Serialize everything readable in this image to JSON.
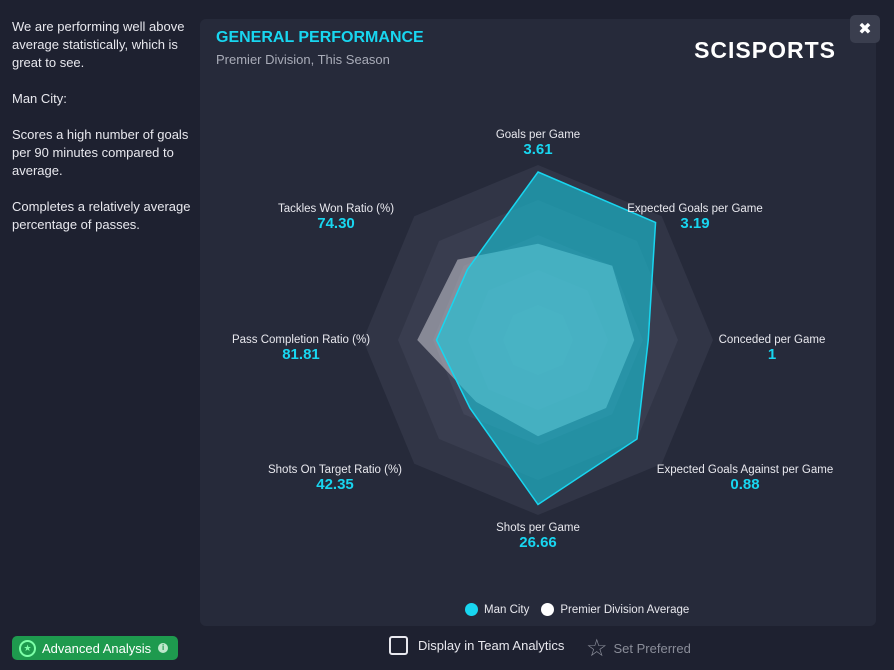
{
  "summary": {
    "p1": "We are performing well above average statistically, which is great to see.",
    "p2": "Man City:",
    "p3": "Scores a high number of goals per 90 minutes compared to average.",
    "p4": "Completes a relatively average percentage of passes."
  },
  "panel": {
    "title": "GENERAL PERFORMANCE",
    "subtitle": "Premier Division, This Season",
    "logo": "SCISPORTS"
  },
  "colors": {
    "team": "#18d6f0",
    "average": "#ffffff",
    "accent": "#1e9a4e"
  },
  "chart_data": {
    "type": "radar",
    "axes": [
      {
        "name": "Goals per Game",
        "value": "3.61"
      },
      {
        "name": "Expected Goals per Game",
        "value": "3.19"
      },
      {
        "name": "Conceded per Game",
        "value": "1"
      },
      {
        "name": "Expected Goals Against per Game",
        "value": "0.88"
      },
      {
        "name": "Shots per Game",
        "value": "26.66"
      },
      {
        "name": "Shots On Target Ratio (%)",
        "value": "42.35"
      },
      {
        "name": "Pass Completion Ratio (%)",
        "value": "81.81"
      },
      {
        "name": "Tackles Won Ratio (%)",
        "value": "74.30"
      }
    ],
    "series": [
      {
        "name": "Man City",
        "normalized": [
          0.96,
          0.95,
          0.63,
          0.8,
          0.94,
          0.55,
          0.58,
          0.57
        ]
      },
      {
        "name": "Premier Division Average",
        "normalized": [
          0.55,
          0.6,
          0.55,
          0.55,
          0.55,
          0.5,
          0.69,
          0.65
        ]
      }
    ],
    "legend": [
      "Man City",
      "Premier Division Average"
    ]
  },
  "footer": {
    "advanced": "Advanced Analysis",
    "display": "Display in Team Analytics",
    "preferred": "Set Preferred"
  }
}
